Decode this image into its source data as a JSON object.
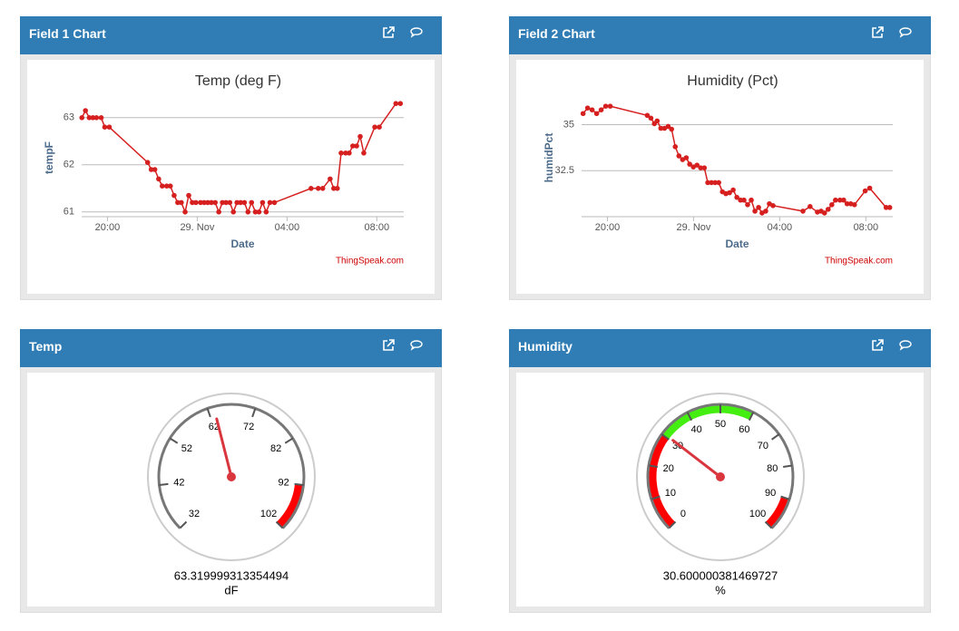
{
  "panels": [
    {
      "title": "Field 1 Chart",
      "chart_data": {
        "type": "line",
        "title": "Temp (deg F)",
        "x_label": "Date",
        "y_label": "tempF",
        "credit": "ThingSpeak.com",
        "x": [
          18.86,
          19.02,
          19.19,
          19.35,
          19.51,
          19.72,
          19.88,
          20.08,
          21.79,
          21.95,
          22.11,
          22.28,
          22.44,
          22.64,
          22.8,
          22.97,
          23.13,
          23.29,
          23.46,
          23.62,
          23.78,
          23.94,
          24.15,
          24.31,
          24.47,
          24.63,
          24.8,
          24.96,
          25.12,
          25.28,
          25.45,
          25.61,
          25.77,
          25.93,
          26.1,
          26.26,
          26.42,
          26.59,
          26.75,
          26.91,
          27.07,
          27.24,
          27.44,
          29.07,
          29.39,
          29.59,
          29.92,
          30.08,
          30.24,
          30.41,
          30.61,
          30.77,
          30.93,
          31.1,
          31.26,
          31.42,
          31.91,
          32.11,
          32.85,
          33.05
        ],
        "series": [
          {
            "name": "tempF",
            "color": "#d62020",
            "values": [
              63.0,
              63.15,
              63.0,
              63.0,
              63.0,
              63.0,
              62.8,
              62.8,
              62.05,
              61.9,
              61.9,
              61.7,
              61.55,
              61.55,
              61.55,
              61.35,
              61.2,
              61.2,
              61.0,
              61.35,
              61.2,
              61.2,
              61.2,
              61.2,
              61.2,
              61.2,
              61.2,
              61.0,
              61.2,
              61.2,
              61.2,
              61.0,
              61.2,
              61.2,
              61.2,
              61.0,
              61.2,
              61.0,
              61.0,
              61.2,
              61.0,
              61.2,
              61.2,
              61.5,
              61.5,
              61.5,
              61.7,
              61.5,
              61.5,
              62.25,
              62.25,
              62.25,
              62.4,
              62.4,
              62.6,
              62.25,
              62.8,
              62.8,
              63.3,
              63.3
            ]
          }
        ],
        "xlim": [
          18.85,
          33.2
        ],
        "ylim": [
          60.9,
          63.4
        ],
        "xticks": [
          {
            "value": 20,
            "label": "20:00"
          },
          {
            "value": 24,
            "label": "29. Nov"
          },
          {
            "value": 28,
            "label": "04:00"
          },
          {
            "value": 32,
            "label": "08:00"
          }
        ],
        "yticks": [
          61,
          62,
          63
        ],
        "grid": true
      }
    },
    {
      "title": "Field 2 Chart",
      "chart_data": {
        "type": "line",
        "title": "Humidity (Pct)",
        "x_label": "Date",
        "y_label": "humidPct",
        "credit": "ThingSpeak.com",
        "x": [
          18.87,
          19.08,
          19.29,
          19.5,
          19.71,
          19.92,
          20.13,
          21.85,
          22.02,
          22.18,
          22.31,
          22.48,
          22.65,
          22.82,
          22.98,
          23.15,
          23.32,
          23.49,
          23.66,
          23.82,
          23.99,
          24.16,
          24.33,
          24.5,
          24.66,
          24.83,
          25.0,
          25.17,
          25.34,
          25.5,
          25.67,
          25.84,
          26.01,
          26.18,
          26.34,
          26.51,
          26.68,
          26.85,
          27.02,
          27.18,
          27.35,
          27.52,
          27.69,
          29.08,
          29.41,
          29.75,
          29.92,
          30.08,
          30.25,
          30.42,
          30.59,
          30.8,
          30.97,
          31.13,
          31.3,
          31.47,
          31.97,
          32.18,
          32.94,
          33.11
        ],
        "series": [
          {
            "name": "humidPct",
            "color": "#d62020",
            "values": [
              35.6,
              35.9,
              35.8,
              35.6,
              35.8,
              36.0,
              36.0,
              35.5,
              35.35,
              35.05,
              35.2,
              34.8,
              34.8,
              34.9,
              34.75,
              33.8,
              33.3,
              33.1,
              33.2,
              32.85,
              32.7,
              32.8,
              32.65,
              32.65,
              31.85,
              31.85,
              31.85,
              31.85,
              31.35,
              31.25,
              31.3,
              31.45,
              31.05,
              30.9,
              30.9,
              30.65,
              30.9,
              30.3,
              30.5,
              30.2,
              30.3,
              30.7,
              30.6,
              30.3,
              30.55,
              30.25,
              30.3,
              30.2,
              30.4,
              30.65,
              30.9,
              30.9,
              30.9,
              30.7,
              30.7,
              30.65,
              31.4,
              31.55,
              30.5,
              30.5
            ]
          }
        ],
        "xlim": [
          18.8,
          33.25
        ],
        "ylim": [
          30,
          36.4
        ],
        "xticks": [
          {
            "value": 20,
            "label": "20:00"
          },
          {
            "value": 24,
            "label": "29. Nov"
          },
          {
            "value": 28,
            "label": "04:00"
          },
          {
            "value": 32,
            "label": "08:00"
          }
        ],
        "yticks": [
          32.5,
          35
        ],
        "grid": true
      }
    },
    {
      "title": "Temp",
      "gauge": {
        "range": [
          32,
          102
        ],
        "ticks": [
          32,
          42,
          52,
          62,
          72,
          82,
          92,
          102
        ],
        "value": 63.319999313354494,
        "units": "dF",
        "bands": [
          {
            "from": 92,
            "to": 102,
            "color": "#ff0000"
          }
        ]
      }
    },
    {
      "title": "Humidity",
      "gauge": {
        "range": [
          0,
          100
        ],
        "ticks": [
          0,
          10,
          20,
          30,
          40,
          50,
          60,
          70,
          80,
          90,
          100
        ],
        "value": 30.600000381469727,
        "units": "%",
        "bands": [
          {
            "from": 0,
            "to": 30,
            "color": "#ff0000"
          },
          {
            "from": 30,
            "to": 60,
            "color": "#44ee11"
          },
          {
            "from": 90,
            "to": 100,
            "color": "#ff0000"
          }
        ]
      }
    }
  ]
}
